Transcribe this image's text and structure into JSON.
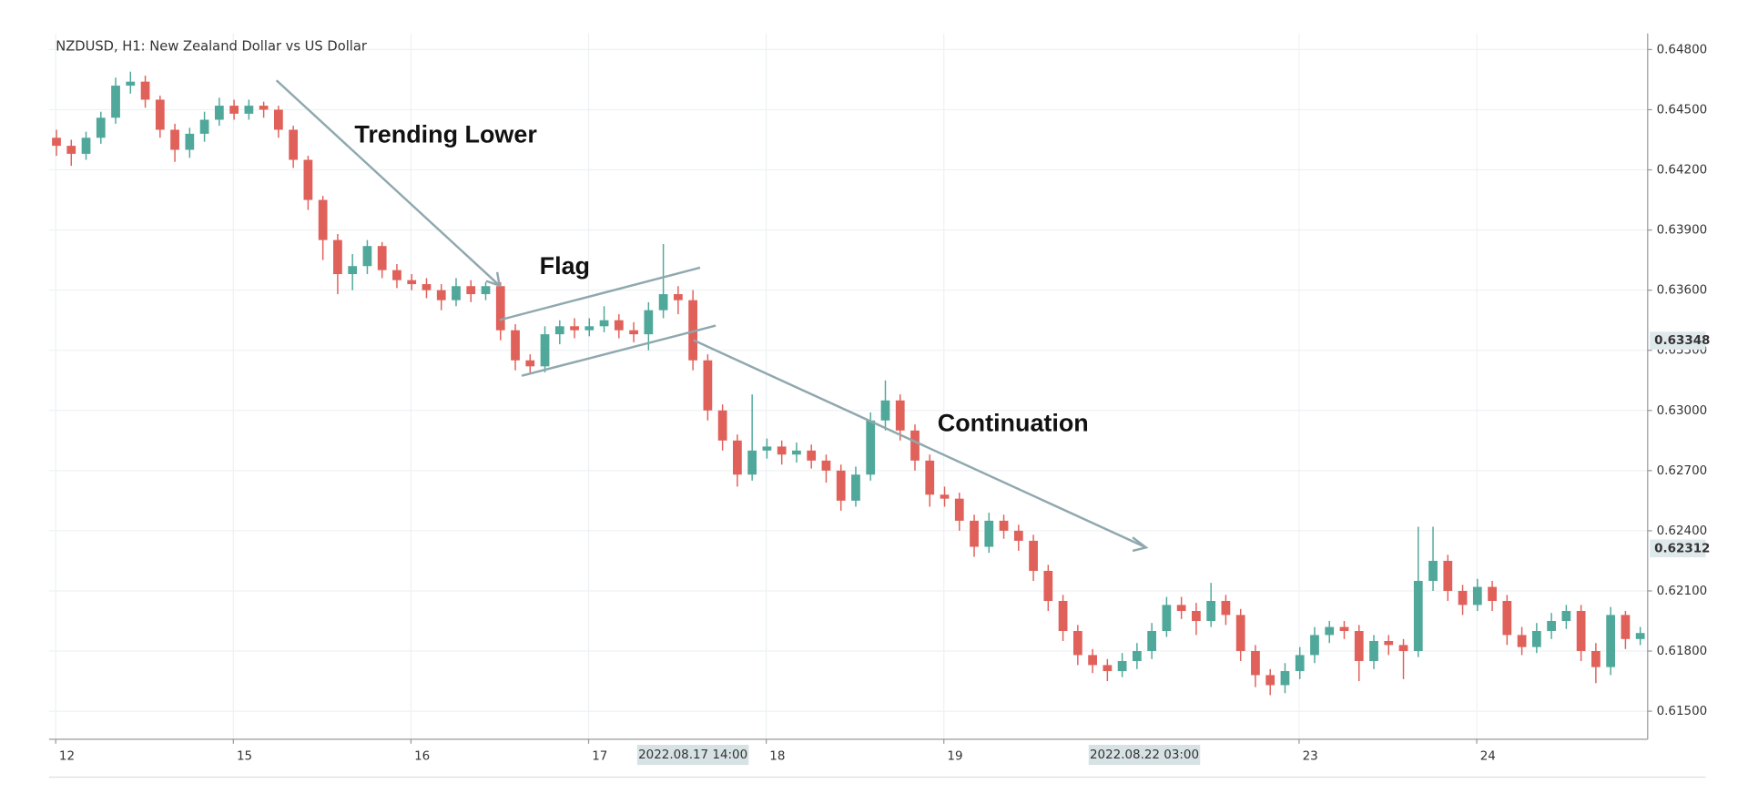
{
  "chart_data": {
    "type": "candlestick",
    "title": "NZDUSD, H1: New Zealand Dollar vs US Dollar",
    "open": [
      0.6436,
      0.6432,
      0.6428,
      0.6436,
      0.6446,
      0.6462,
      0.6464,
      0.6455,
      0.644,
      0.643,
      0.6438,
      0.6445,
      0.6452,
      0.6448,
      0.6452,
      0.645,
      0.644,
      0.6425,
      0.6405,
      0.6385,
      0.6368,
      0.6372,
      0.6382,
      0.637,
      0.6365,
      0.6363,
      0.636,
      0.6355,
      0.6362,
      0.6358,
      0.6362,
      0.634,
      0.6325,
      0.6322,
      0.6338,
      0.6342,
      0.634,
      0.6342,
      0.6345,
      0.634,
      0.6338,
      0.635,
      0.6358,
      0.6355,
      0.6325,
      0.63,
      0.6285,
      0.6268,
      0.628,
      0.6282,
      0.6278,
      0.628,
      0.6275,
      0.627,
      0.6255,
      0.6268,
      0.6295,
      0.6305,
      0.629,
      0.6275,
      0.6258,
      0.6256,
      0.6245,
      0.6232,
      0.6245,
      0.624,
      0.6235,
      0.622,
      0.6205,
      0.619,
      0.6178,
      0.6173,
      0.617,
      0.6175,
      0.618,
      0.619,
      0.6203,
      0.62,
      0.6195,
      0.6205,
      0.6198,
      0.618,
      0.6168,
      0.6163,
      0.617,
      0.6178,
      0.6188,
      0.6192,
      0.619,
      0.6175,
      0.6185,
      0.6183,
      0.618,
      0.6215,
      0.6225,
      0.621,
      0.6203,
      0.6212,
      0.6205,
      0.6188,
      0.6182,
      0.619,
      0.6195,
      0.62,
      0.618,
      0.6172,
      0.6198,
      0.6186
    ],
    "high": [
      0.644,
      0.6435,
      0.6439,
      0.6449,
      0.6466,
      0.6469,
      0.6467,
      0.6457,
      0.6443,
      0.6441,
      0.6449,
      0.6456,
      0.6455,
      0.6455,
      0.6454,
      0.6452,
      0.6442,
      0.6427,
      0.6407,
      0.6388,
      0.6378,
      0.6385,
      0.6384,
      0.6373,
      0.6368,
      0.6366,
      0.6363,
      0.6366,
      0.6365,
      0.6364,
      0.6364,
      0.6343,
      0.6328,
      0.6342,
      0.6345,
      0.6346,
      0.6346,
      0.6352,
      0.6348,
      0.6344,
      0.6354,
      0.6383,
      0.6362,
      0.636,
      0.6328,
      0.6303,
      0.6288,
      0.6308,
      0.6286,
      0.6285,
      0.6284,
      0.6283,
      0.6278,
      0.6273,
      0.6272,
      0.6299,
      0.6315,
      0.6308,
      0.6293,
      0.6278,
      0.6262,
      0.6259,
      0.6248,
      0.6249,
      0.6248,
      0.6243,
      0.6238,
      0.6223,
      0.6208,
      0.6193,
      0.6181,
      0.6176,
      0.6179,
      0.6184,
      0.6194,
      0.6207,
      0.6207,
      0.6204,
      0.6214,
      0.6208,
      0.6201,
      0.6183,
      0.6171,
      0.6174,
      0.6182,
      0.6192,
      0.6195,
      0.6195,
      0.6193,
      0.6188,
      0.6188,
      0.6186,
      0.6242,
      0.6242,
      0.6228,
      0.6213,
      0.6216,
      0.6215,
      0.6208,
      0.6192,
      0.6194,
      0.6199,
      0.6203,
      0.6203,
      0.6184,
      0.6202,
      0.62,
      0.6192
    ],
    "low": [
      0.6427,
      0.6422,
      0.6425,
      0.6433,
      0.6443,
      0.6458,
      0.6451,
      0.6436,
      0.6424,
      0.6426,
      0.6434,
      0.6442,
      0.6445,
      0.6445,
      0.6446,
      0.6436,
      0.6421,
      0.64,
      0.6375,
      0.6358,
      0.636,
      0.6368,
      0.6366,
      0.6361,
      0.636,
      0.6356,
      0.635,
      0.6352,
      0.6354,
      0.6355,
      0.6335,
      0.632,
      0.6318,
      0.6319,
      0.6333,
      0.6336,
      0.6337,
      0.6339,
      0.6336,
      0.6334,
      0.633,
      0.6346,
      0.6348,
      0.632,
      0.6295,
      0.628,
      0.6262,
      0.6265,
      0.6276,
      0.6273,
      0.6274,
      0.6271,
      0.6264,
      0.625,
      0.6252,
      0.6265,
      0.629,
      0.6285,
      0.627,
      0.6252,
      0.6252,
      0.624,
      0.6227,
      0.6229,
      0.6236,
      0.623,
      0.6215,
      0.62,
      0.6185,
      0.6173,
      0.6169,
      0.6165,
      0.6167,
      0.6171,
      0.6176,
      0.6187,
      0.6196,
      0.6188,
      0.6192,
      0.6193,
      0.6175,
      0.6162,
      0.6158,
      0.6159,
      0.6166,
      0.6174,
      0.6184,
      0.6186,
      0.6165,
      0.6171,
      0.6178,
      0.6166,
      0.6177,
      0.621,
      0.6205,
      0.6198,
      0.62,
      0.62,
      0.6183,
      0.6178,
      0.6179,
      0.6186,
      0.6191,
      0.6175,
      0.6164,
      0.6168,
      0.6181,
      0.6183
    ],
    "close": [
      0.6432,
      0.6428,
      0.6436,
      0.6446,
      0.6462,
      0.6464,
      0.6455,
      0.644,
      0.643,
      0.6438,
      0.6445,
      0.6452,
      0.6448,
      0.6452,
      0.645,
      0.644,
      0.6425,
      0.6405,
      0.6385,
      0.6368,
      0.6372,
      0.6382,
      0.637,
      0.6365,
      0.6363,
      0.636,
      0.6355,
      0.6362,
      0.6358,
      0.6362,
      0.634,
      0.6325,
      0.6322,
      0.6338,
      0.6342,
      0.634,
      0.6342,
      0.6345,
      0.634,
      0.6338,
      0.635,
      0.6358,
      0.6355,
      0.6325,
      0.63,
      0.6285,
      0.6268,
      0.628,
      0.6282,
      0.6278,
      0.628,
      0.6275,
      0.627,
      0.6255,
      0.6268,
      0.6295,
      0.6305,
      0.629,
      0.6275,
      0.6258,
      0.6256,
      0.6245,
      0.6232,
      0.6245,
      0.624,
      0.6235,
      0.622,
      0.6205,
      0.619,
      0.6178,
      0.6173,
      0.617,
      0.6175,
      0.618,
      0.619,
      0.6203,
      0.62,
      0.6195,
      0.6205,
      0.6198,
      0.618,
      0.6168,
      0.6163,
      0.617,
      0.6178,
      0.6188,
      0.6192,
      0.619,
      0.6175,
      0.6185,
      0.6183,
      0.618,
      0.6215,
      0.6225,
      0.621,
      0.6203,
      0.6212,
      0.6205,
      0.6188,
      0.6182,
      0.619,
      0.6195,
      0.62,
      0.618,
      0.6172,
      0.6198,
      0.6186,
      0.6189
    ],
    "up_color": "#4fa89a",
    "down_color": "#e0605a",
    "xlim": [
      0,
      108
    ],
    "xticks": [
      {
        "value": 0,
        "label": "12"
      },
      {
        "value": 12,
        "label": "15"
      },
      {
        "value": 24,
        "label": "16"
      },
      {
        "value": 36,
        "label": "17"
      },
      {
        "value": 48,
        "label": "18"
      },
      {
        "value": 60,
        "label": "19"
      },
      {
        "value": 84,
        "label": "23"
      },
      {
        "value": 96,
        "label": "24"
      }
    ],
    "x_labels": [
      {
        "value": 43.5,
        "label": "2022.08.17 14:00"
      },
      {
        "value": 74,
        "label": "2022.08.22 03:00"
      }
    ],
    "ylim": [
      0.6136,
      0.6488
    ],
    "yticks": [
      {
        "value": 0.648,
        "label": "0.64800"
      },
      {
        "value": 0.645,
        "label": "0.64500"
      },
      {
        "value": 0.642,
        "label": "0.64200"
      },
      {
        "value": 0.639,
        "label": "0.63900"
      },
      {
        "value": 0.636,
        "label": "0.63600"
      },
      {
        "value": 0.633,
        "label": "0.63300"
      },
      {
        "value": 0.63,
        "label": "0.63000"
      },
      {
        "value": 0.627,
        "label": "0.62700"
      },
      {
        "value": 0.624,
        "label": "0.62400"
      },
      {
        "value": 0.621,
        "label": "0.62100"
      },
      {
        "value": 0.618,
        "label": "0.61800"
      },
      {
        "value": 0.615,
        "label": "0.61500"
      }
    ],
    "price_labels": [
      0.63348,
      0.62312
    ],
    "grid": true,
    "annotations": [
      "Trending Lower",
      "Flag",
      "Continuation"
    ]
  }
}
